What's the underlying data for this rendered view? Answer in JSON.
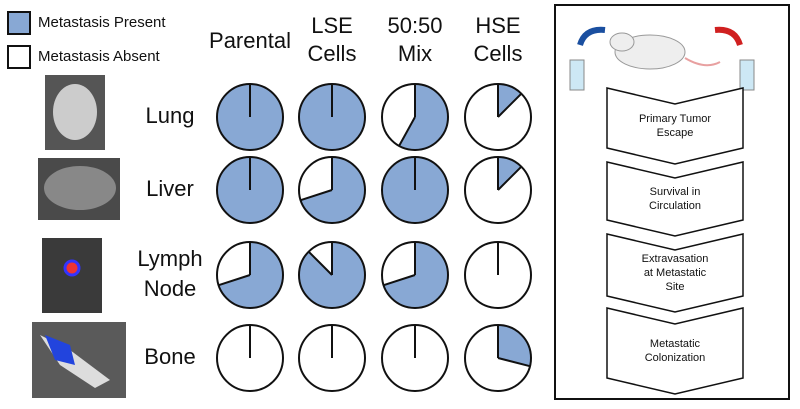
{
  "legend": {
    "present": "Metastasis Present",
    "absent": "Metastasis Absent"
  },
  "columns": [
    [
      "Parental"
    ],
    [
      "LSE",
      "Cells"
    ],
    [
      "50:50",
      "Mix"
    ],
    [
      "HSE",
      "Cells"
    ]
  ],
  "rows": [
    {
      "label": [
        "Lung"
      ],
      "values": [
        100,
        100,
        58,
        12.5
      ]
    },
    {
      "label": [
        "Liver"
      ],
      "values": [
        100,
        70,
        100,
        12.5
      ]
    },
    {
      "label": [
        "Lymph",
        "Node"
      ],
      "values": [
        70,
        87.5,
        70,
        0
      ]
    },
    {
      "label": [
        "Bone"
      ],
      "values": [
        0,
        0,
        0,
        29
      ]
    }
  ],
  "steps": [
    [
      "Primary Tumor",
      "Escape"
    ],
    [
      "Survival in",
      "Circulation"
    ],
    [
      "Extravasation",
      "at Metastatic",
      "Site"
    ],
    [
      "Metastatic",
      "Colonization"
    ]
  ]
}
